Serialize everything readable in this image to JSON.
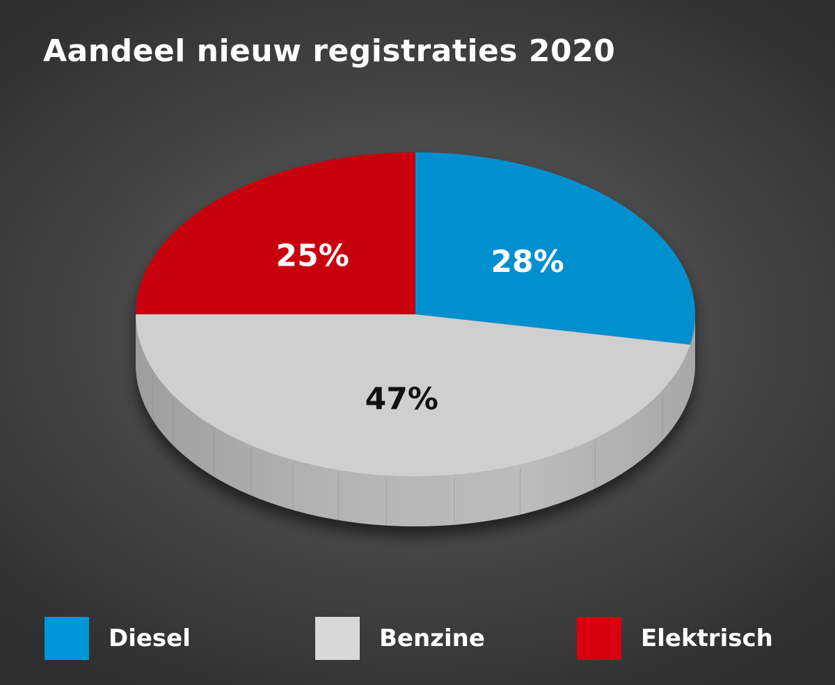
{
  "chart_data": {
    "type": "pie",
    "title": "Aandeel nieuw registraties 2020",
    "series": [
      {
        "name": "Diesel",
        "value": 28,
        "label": "28%",
        "color": "#0090d0",
        "label_color": "#ffffff"
      },
      {
        "name": "Benzine",
        "value": 47,
        "label": "47%",
        "color": "#cfcfcf",
        "label_color": "#111111"
      },
      {
        "name": "Elektrisch",
        "value": 25,
        "label": "25%",
        "color": "#c8000b",
        "label_color": "#ffffff"
      }
    ],
    "legend": {
      "position": "bottom",
      "entries": [
        {
          "name": "Diesel",
          "color": "#0096d8"
        },
        {
          "name": "Benzine",
          "color": "#d8d8d8"
        },
        {
          "name": "Elektrisch",
          "color": "#d6000e"
        }
      ]
    },
    "style": "3d"
  }
}
